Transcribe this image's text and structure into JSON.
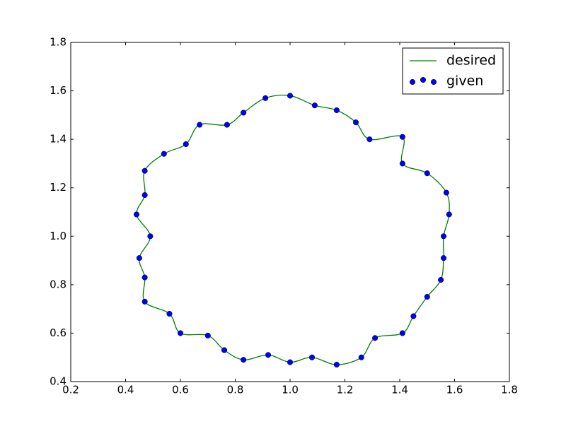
{
  "chart_data": {
    "type": "line",
    "xlim": [
      0.2,
      1.8
    ],
    "xticks": [
      0.2,
      0.4,
      0.6,
      0.8,
      {
        "value": 1.0,
        "label": "1.0"
      },
      1.2,
      1.4,
      1.6,
      1.8
    ],
    "ylim": [
      0.4,
      1.8
    ],
    "yticks": [
      0.4,
      0.6,
      0.8,
      {
        "value": 1.0,
        "label": "1.0"
      },
      1.2,
      1.4,
      1.6,
      1.8
    ],
    "legend": "upper right",
    "series": [
      {
        "name": "desired",
        "color": "#008000",
        "style": "line",
        "smooth": true,
        "x": [
          1.58,
          1.57,
          1.5,
          1.41,
          1.41,
          1.29,
          1.24,
          1.17,
          1.09,
          1.0,
          0.91,
          0.83,
          0.77,
          0.67,
          0.62,
          0.54,
          0.47,
          0.47,
          0.44,
          0.49,
          0.45,
          0.47,
          0.47,
          0.56,
          0.6,
          0.7,
          0.76,
          0.83,
          0.92,
          1.0,
          1.08,
          1.17,
          1.26,
          1.31,
          1.41,
          1.45,
          1.5,
          1.55,
          1.56,
          1.56,
          1.58
        ],
        "values": [
          1.09,
          1.18,
          1.26,
          1.3,
          1.41,
          1.4,
          1.47,
          1.52,
          1.54,
          1.58,
          1.57,
          1.51,
          1.46,
          1.46,
          1.38,
          1.34,
          1.27,
          1.17,
          1.09,
          1.0,
          0.91,
          0.83,
          0.73,
          0.68,
          0.6,
          0.59,
          0.53,
          0.49,
          0.51,
          0.48,
          0.5,
          0.47,
          0.5,
          0.58,
          0.6,
          0.67,
          0.75,
          0.82,
          0.91,
          1.0,
          1.09
        ]
      },
      {
        "name": "given",
        "color": "#0000ff",
        "style": "markers",
        "x": [
          1.58,
          1.57,
          1.5,
          1.41,
          1.41,
          1.29,
          1.24,
          1.17,
          1.09,
          1.0,
          0.91,
          0.83,
          0.77,
          0.67,
          0.62,
          0.54,
          0.47,
          0.47,
          0.44,
          0.49,
          0.45,
          0.47,
          0.47,
          0.56,
          0.6,
          0.7,
          0.76,
          0.83,
          0.92,
          1.0,
          1.08,
          1.17,
          1.26,
          1.31,
          1.41,
          1.45,
          1.5,
          1.55,
          1.56,
          1.56
        ],
        "values": [
          1.09,
          1.18,
          1.26,
          1.3,
          1.41,
          1.4,
          1.47,
          1.52,
          1.54,
          1.58,
          1.57,
          1.51,
          1.46,
          1.46,
          1.38,
          1.34,
          1.27,
          1.17,
          1.09,
          1.0,
          0.91,
          0.83,
          0.73,
          0.68,
          0.6,
          0.59,
          0.53,
          0.49,
          0.51,
          0.48,
          0.5,
          0.47,
          0.5,
          0.58,
          0.6,
          0.67,
          0.75,
          0.82,
          0.91,
          1.0
        ]
      }
    ]
  }
}
